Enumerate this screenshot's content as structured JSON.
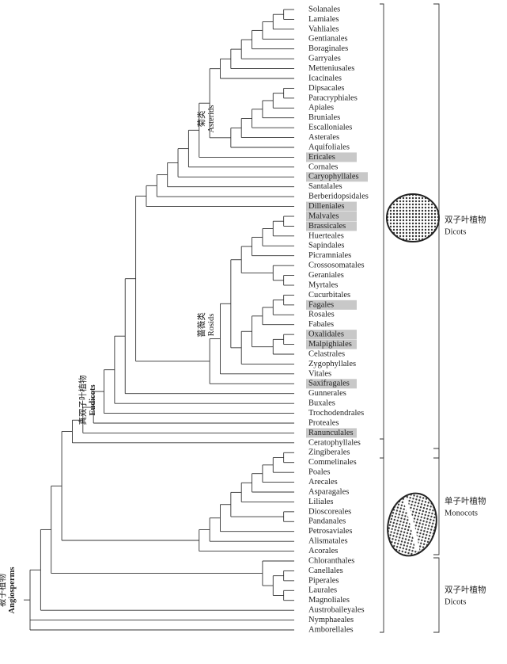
{
  "leaves": [
    {
      "name": "Solanales",
      "highlight": false
    },
    {
      "name": "Lamiales",
      "highlight": false
    },
    {
      "name": "Vahliales",
      "highlight": false
    },
    {
      "name": "Gentianales",
      "highlight": false
    },
    {
      "name": "Boraginales",
      "highlight": false
    },
    {
      "name": "Garryales",
      "highlight": false
    },
    {
      "name": "Metteniusales",
      "highlight": false
    },
    {
      "name": "Icacinales",
      "highlight": false
    },
    {
      "name": "Dipsacales",
      "highlight": false
    },
    {
      "name": "Paracryphiales",
      "highlight": false
    },
    {
      "name": "Apiales",
      "highlight": false
    },
    {
      "name": "Bruniales",
      "highlight": false
    },
    {
      "name": "Escalloniales",
      "highlight": false
    },
    {
      "name": "Asterales",
      "highlight": false
    },
    {
      "name": "Aquifoliales",
      "highlight": false
    },
    {
      "name": "Ericales",
      "highlight": true
    },
    {
      "name": "Cornales",
      "highlight": false
    },
    {
      "name": "Caryophyllales",
      "highlight": true
    },
    {
      "name": "Santalales",
      "highlight": false
    },
    {
      "name": "Berberidopsidales",
      "highlight": false
    },
    {
      "name": "Dilleniales",
      "highlight": true
    },
    {
      "name": "Malvales",
      "highlight": true
    },
    {
      "name": "Brassicales",
      "highlight": true
    },
    {
      "name": "Huerteales",
      "highlight": false
    },
    {
      "name": "Sapindales",
      "highlight": false
    },
    {
      "name": "Picramniales",
      "highlight": false
    },
    {
      "name": "Crossosomatales",
      "highlight": false
    },
    {
      "name": "Geraniales",
      "highlight": false
    },
    {
      "name": "Myrtales",
      "highlight": false
    },
    {
      "name": "Cucurbitales",
      "highlight": false
    },
    {
      "name": "Fagales",
      "highlight": true
    },
    {
      "name": "Rosales",
      "highlight": false
    },
    {
      "name": "Fabales",
      "highlight": false
    },
    {
      "name": "Oxalidales",
      "highlight": true
    },
    {
      "name": "Malpighiales",
      "highlight": true
    },
    {
      "name": "Celastrales",
      "highlight": false
    },
    {
      "name": "Zygophyllales",
      "highlight": false
    },
    {
      "name": "Vitales",
      "highlight": false
    },
    {
      "name": "Saxifragales",
      "highlight": true
    },
    {
      "name": "Gunnerales",
      "highlight": false
    },
    {
      "name": "Buxales",
      "highlight": false
    },
    {
      "name": "Trochodendrales",
      "highlight": false
    },
    {
      "name": "Proteales",
      "highlight": false
    },
    {
      "name": "Ranunculales",
      "highlight": true
    },
    {
      "name": "Ceratophyllales",
      "highlight": false
    },
    {
      "name": "Zingiberales",
      "highlight": false
    },
    {
      "name": "Commelinales",
      "highlight": false
    },
    {
      "name": "Poales",
      "highlight": false
    },
    {
      "name": "Arecales",
      "highlight": false
    },
    {
      "name": "Asparagales",
      "highlight": false
    },
    {
      "name": "Liliales",
      "highlight": false
    },
    {
      "name": "Dioscoreales",
      "highlight": false
    },
    {
      "name": "Pandanales",
      "highlight": false
    },
    {
      "name": "Petrosaviales",
      "highlight": false
    },
    {
      "name": "Alismatales",
      "highlight": false
    },
    {
      "name": "Acorales",
      "highlight": false
    },
    {
      "name": "Chloranthales",
      "highlight": false
    },
    {
      "name": "Canellales",
      "highlight": false
    },
    {
      "name": "Piperales",
      "highlight": false
    },
    {
      "name": "Laurales",
      "highlight": false
    },
    {
      "name": "Magnoliales",
      "highlight": false
    },
    {
      "name": "Austrobaileyales",
      "highlight": false
    },
    {
      "name": "Nymphaeales",
      "highlight": false
    },
    {
      "name": "Amborellales",
      "highlight": false
    }
  ],
  "clades": [
    {
      "zh": "菊类",
      "en": "Asterids"
    },
    {
      "zh": "蔷薇类",
      "en": "Rosids"
    },
    {
      "zh": "真双子叶植物",
      "en": "Eudicots"
    },
    {
      "zh": "被子植物",
      "en": "Angiosperms"
    }
  ],
  "groups": [
    {
      "zh": "双子叶植物",
      "en": "Dicots"
    },
    {
      "zh": "单子叶植物",
      "en": "Monocots"
    },
    {
      "zh": "双子叶植物",
      "en": "Dicots"
    }
  ]
}
